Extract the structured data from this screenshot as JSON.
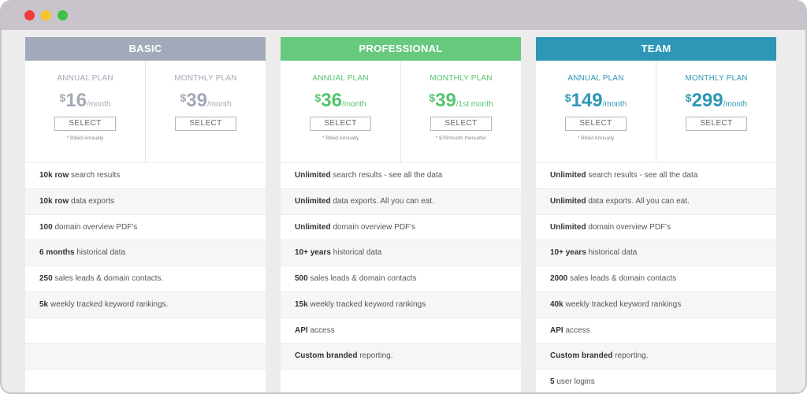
{
  "window": {
    "controls": [
      "close",
      "minimize",
      "maximize"
    ]
  },
  "plans": [
    {
      "name": "BASIC",
      "color": "#a2a9b9",
      "price_color": "#a4a9b6",
      "columns": [
        {
          "label": "ANNUAL PLAN",
          "currency": "$",
          "amount": "16",
          "period": "/month",
          "button": "SELECT",
          "note": "* Billed Annually"
        },
        {
          "label": "MONTHLY PLAN",
          "currency": "$",
          "amount": "39",
          "period": "/month",
          "button": "SELECT",
          "note": ""
        }
      ],
      "features": [
        {
          "bold": "10k row",
          "text": " search results"
        },
        {
          "bold": "10k row",
          "text": " data exports"
        },
        {
          "bold": "100",
          "text": " domain overview PDF's"
        },
        {
          "bold": "6 months",
          "text": " historical data"
        },
        {
          "bold": "250",
          "text": " sales leads & domain contacts."
        },
        {
          "bold": "5k",
          "text": " weekly tracked keyword rankings."
        },
        {
          "bold": "",
          "text": ""
        },
        {
          "bold": "",
          "text": ""
        },
        {
          "bold": "",
          "text": ""
        }
      ]
    },
    {
      "name": "PROFESSIONAL",
      "color": "#66c97d",
      "price_color": "#55c46e",
      "columns": [
        {
          "label": "ANNUAL PLAN",
          "currency": "$",
          "amount": "36",
          "period": "/month",
          "button": "SELECT",
          "note": "* Billed Annually"
        },
        {
          "label": "MONTHLY PLAN",
          "currency": "$",
          "amount": "39",
          "period": "/1st month",
          "button": "SELECT",
          "note": "* $79/month thereafter"
        }
      ],
      "features": [
        {
          "bold": "Unlimited",
          "text": " search results - see all the data"
        },
        {
          "bold": "Unlimited",
          "text": " data exports. All you can eat."
        },
        {
          "bold": "Unlimited",
          "text": " domain overview PDF's"
        },
        {
          "bold": "10+ years",
          "text": " historical data"
        },
        {
          "bold": "500",
          "text": " sales leads & domain contacts"
        },
        {
          "bold": "15k",
          "text": " weekly tracked keyword rankings"
        },
        {
          "bold": "API",
          "text": " access"
        },
        {
          "bold": "Custom branded",
          "text": " reporting."
        },
        {
          "bold": "",
          "text": ""
        }
      ]
    },
    {
      "name": "TEAM",
      "color": "#2e97b6",
      "price_color": "#2e97b6",
      "columns": [
        {
          "label": "ANNUAL PLAN",
          "currency": "$",
          "amount": "149",
          "period": "/month",
          "button": "SELECT",
          "note": "* Billed Annually"
        },
        {
          "label": "MONTHLY PLAN",
          "currency": "$",
          "amount": "299",
          "period": "/month",
          "button": "SELECT",
          "note": ""
        }
      ],
      "features": [
        {
          "bold": "Unlimited",
          "text": " search results - see all the data"
        },
        {
          "bold": "Unlimited",
          "text": " data exports. All you can eat."
        },
        {
          "bold": "Unlimited",
          "text": " domain overview PDF's"
        },
        {
          "bold": "10+ years",
          "text": " historical data"
        },
        {
          "bold": "2000",
          "text": " sales leads & domain contacts"
        },
        {
          "bold": "40k",
          "text": " weekly tracked keyword rankings"
        },
        {
          "bold": "API",
          "text": " access"
        },
        {
          "bold": "Custom branded",
          "text": " reporting."
        },
        {
          "bold": "5",
          "text": " user logins"
        }
      ]
    }
  ]
}
